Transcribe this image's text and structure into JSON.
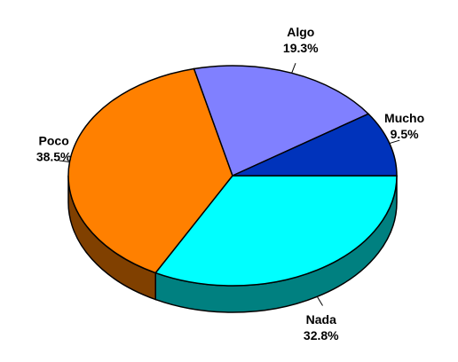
{
  "chart_data": {
    "type": "pie",
    "categories": [
      "Nada",
      "Poco",
      "Algo",
      "Mucho"
    ],
    "values": [
      32.8,
      38.5,
      19.3,
      9.5
    ],
    "value_labels": [
      "32.8%",
      "38.5%",
      "19.3%",
      "9.5%"
    ],
    "colors": [
      "#00FFFF",
      "#FF8000",
      "#8080FF",
      "#0033BB"
    ]
  }
}
